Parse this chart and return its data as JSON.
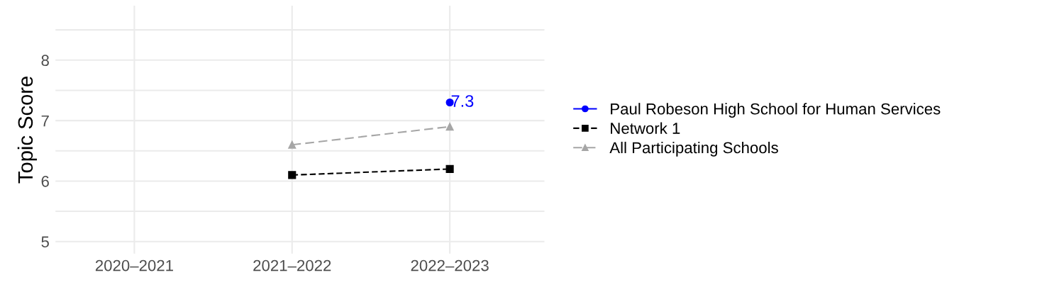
{
  "chart_data": {
    "type": "line",
    "ylabel": "Topic Score",
    "categories": [
      "2020–2021",
      "2021–2022",
      "2022–2023"
    ],
    "series": [
      {
        "name": "Paul Robeson High School for Human Services",
        "color": "#0000ff",
        "values": [
          null,
          null,
          7.3
        ],
        "marker": "circle",
        "line_style": "solid",
        "value_labels": [
          null,
          null,
          "7.3"
        ]
      },
      {
        "name": "Network 1",
        "color": "#000000",
        "values": [
          null,
          6.1,
          6.2
        ],
        "marker": "square",
        "line_style": "dashed"
      },
      {
        "name": "All Participating Schools",
        "color": "#a6a6a6",
        "values": [
          null,
          6.6,
          6.9
        ],
        "marker": "triangle",
        "line_style": "dashed"
      }
    ],
    "ylim": [
      4.8,
      8.9
    ],
    "yticks": [
      5,
      {
        "value": 5.5,
        "label": null
      },
      6,
      {
        "value": 6.5,
        "label": null
      },
      7,
      {
        "value": 7.5,
        "label": null
      },
      8,
      {
        "value": 8.5,
        "label": null
      }
    ],
    "grid": true,
    "legend": "right"
  }
}
